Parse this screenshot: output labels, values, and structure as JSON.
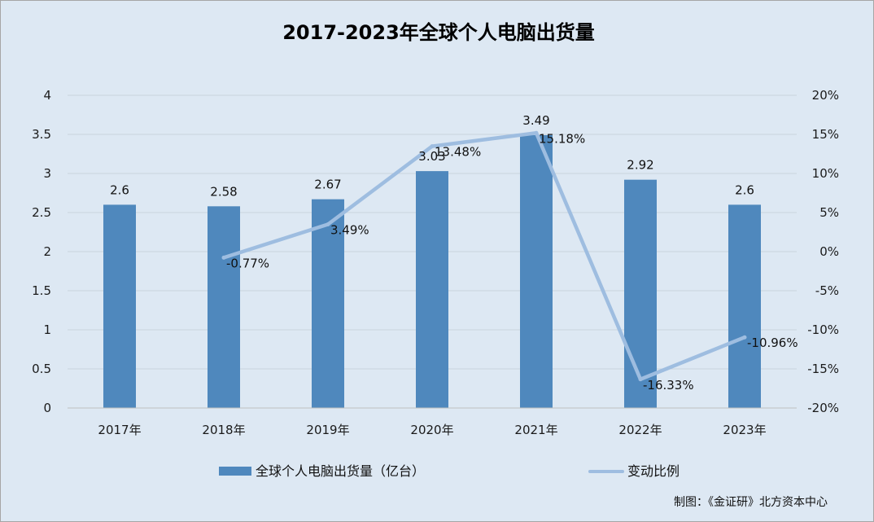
{
  "chart_data": {
    "type": "bar",
    "title": "2017-2023年全球个人电脑出货量",
    "categories": [
      "2017年",
      "2018年",
      "2019年",
      "2020年",
      "2021年",
      "2022年",
      "2023年"
    ],
    "series": [
      {
        "name": "全球个人电脑出货量（亿台）",
        "type": "bar",
        "axis": "left",
        "color": "#4f88bd",
        "values": [
          2.6,
          2.58,
          2.67,
          3.03,
          3.49,
          2.92,
          2.6
        ],
        "labels": [
          "2.6",
          "2.58",
          "2.67",
          "3.03",
          "3.49",
          "2.92",
          "2.6"
        ]
      },
      {
        "name": "变动比例",
        "type": "line",
        "axis": "right",
        "color": "#9ebde0",
        "values": [
          null,
          -0.77,
          3.49,
          13.48,
          15.18,
          -16.33,
          -10.96
        ],
        "labels": [
          "",
          "-0.77%",
          "3.49%",
          "13.48%",
          "15.18%",
          "-16.33%",
          "-10.96%"
        ]
      }
    ],
    "y_left": {
      "lim": [
        0,
        4
      ],
      "ticks": [
        0,
        0.5,
        1,
        1.5,
        2,
        2.5,
        3,
        3.5,
        4
      ],
      "tick_labels": [
        "0",
        "0.5",
        "1",
        "1.5",
        "2",
        "2.5",
        "3",
        "3.5",
        "4"
      ]
    },
    "y_right": {
      "lim": [
        -20,
        20
      ],
      "ticks": [
        -20,
        -15,
        -10,
        -5,
        0,
        5,
        10,
        15,
        20
      ],
      "tick_labels": [
        "-20%",
        "-15%",
        "-10%",
        "-5%",
        "0%",
        "5%",
        "10%",
        "15%",
        "20%"
      ]
    },
    "grid": true,
    "legend_position": "bottom",
    "background_color": "#dde8f3"
  },
  "credit": "制图：《金证研》北方资本中心"
}
